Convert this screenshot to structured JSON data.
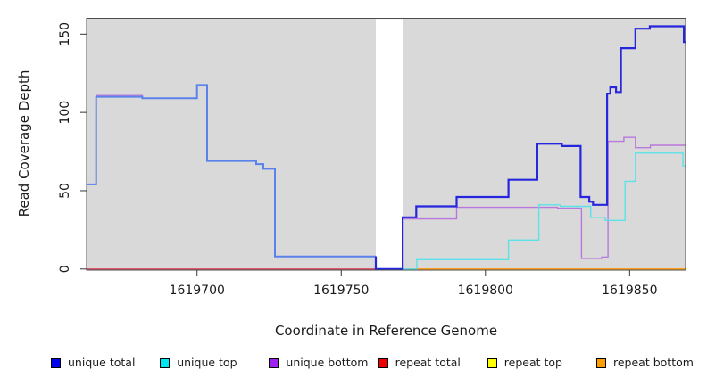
{
  "chart_data": {
    "type": "line",
    "subtype": "step-coverage-plot",
    "title": "",
    "xlabel": "Coordinate in Reference Genome",
    "ylabel": "Read Coverage Depth",
    "xlim": [
      1619661.7,
      1619869.4
    ],
    "ylim": [
      0,
      160
    ],
    "x_ticks": [
      1619700,
      1619750,
      1619800,
      1619850
    ],
    "y_ticks": [
      0,
      50,
      100,
      150
    ],
    "grid": false,
    "plot_bg_color": "#d9d9d9",
    "border_color": "#4d4d4d",
    "gap_region": {
      "x_start": 1619762,
      "x_end": 1619771.3,
      "color": "#ffffff"
    },
    "legend_position": "bottom",
    "series": [
      {
        "name": "unique total",
        "legend_color": "#0000EE",
        "line_color": "#2626dd",
        "line_color_left": "#5a82ea",
        "split_x": 1619762,
        "line_width": 2.2,
        "line_width_left": 2,
        "z": 6,
        "steps": [
          [
            1619661.7,
            54
          ],
          [
            1619665,
            110
          ],
          [
            1619681,
            109
          ],
          [
            1619700,
            117.5
          ],
          [
            1619703.5,
            69
          ],
          [
            1619720.5,
            67
          ],
          [
            1619723,
            64
          ],
          [
            1619727,
            8
          ],
          [
            1619762,
            0
          ],
          [
            1619771.3,
            33
          ],
          [
            1619776,
            40
          ],
          [
            1619790,
            46
          ],
          [
            1619808,
            57
          ],
          [
            1619818,
            80
          ],
          [
            1619826.5,
            78.5
          ],
          [
            1619833,
            46
          ],
          [
            1619836,
            43
          ],
          [
            1619837.3,
            41
          ],
          [
            1619842.2,
            112
          ],
          [
            1619843.3,
            116
          ],
          [
            1619845.3,
            113
          ],
          [
            1619847,
            141
          ],
          [
            1619852,
            153.5
          ],
          [
            1619857,
            155
          ],
          [
            1619868.8,
            145
          ]
        ],
        "x_end": 1619869.4
      },
      {
        "name": "unique top",
        "legend_color": "#00E6EE",
        "line_color": "#5ae2e8",
        "line_width": 1.4,
        "z": 5,
        "steps": [
          [
            1619771.3,
            0
          ],
          [
            1619776.2,
            6
          ],
          [
            1619808,
            18.5
          ],
          [
            1619818.5,
            41
          ],
          [
            1619826,
            40
          ],
          [
            1619836.5,
            33
          ],
          [
            1619841.5,
            31
          ],
          [
            1619848.4,
            56
          ],
          [
            1619852,
            74
          ],
          [
            1619868.5,
            66
          ]
        ],
        "x_end": 1619869.4
      },
      {
        "name": "unique bottom",
        "legend_color": "#A020F0",
        "line_color": "#b878dc",
        "line_width": 1.4,
        "z": 4,
        "steps": [
          [
            1619661.7,
            54
          ],
          [
            1619665,
            110.8
          ],
          [
            1619681,
            109
          ],
          [
            1619700,
            117.5
          ],
          [
            1619703.5,
            69
          ],
          [
            1619720.5,
            67
          ],
          [
            1619723,
            64
          ],
          [
            1619727,
            8
          ],
          [
            1619762,
            0
          ],
          [
            1619771.3,
            32
          ],
          [
            1619790,
            39.4
          ],
          [
            1619825,
            38.8
          ],
          [
            1619833.3,
            6.8
          ],
          [
            1619840.3,
            7.6
          ],
          [
            1619842.5,
            81.5
          ],
          [
            1619848,
            84
          ],
          [
            1619852,
            77.5
          ],
          [
            1619857.2,
            79
          ]
        ],
        "x_end": 1619869.4
      },
      {
        "name": "repeat total",
        "legend_color": "#EE0000",
        "line_color": "#d6496e",
        "line_width": 1.4,
        "z": 2,
        "steps": [
          [
            1619661.7,
            0
          ]
        ],
        "x_end": 1619762
      },
      {
        "name": "repeat top",
        "legend_color": "#FFFF00",
        "line_color": "#ffff00",
        "line_width": 1.2,
        "z": 1,
        "steps": [
          [
            1619661.7,
            0
          ]
        ],
        "x_end": 1619869.4
      },
      {
        "name": "repeat bottom",
        "legend_color": "#FF9E00",
        "line_color": "#ff9f1f",
        "line_width": 1.6,
        "z": 3,
        "steps": [
          [
            1619771.3,
            0
          ]
        ],
        "x_end": 1619869.4
      }
    ]
  }
}
